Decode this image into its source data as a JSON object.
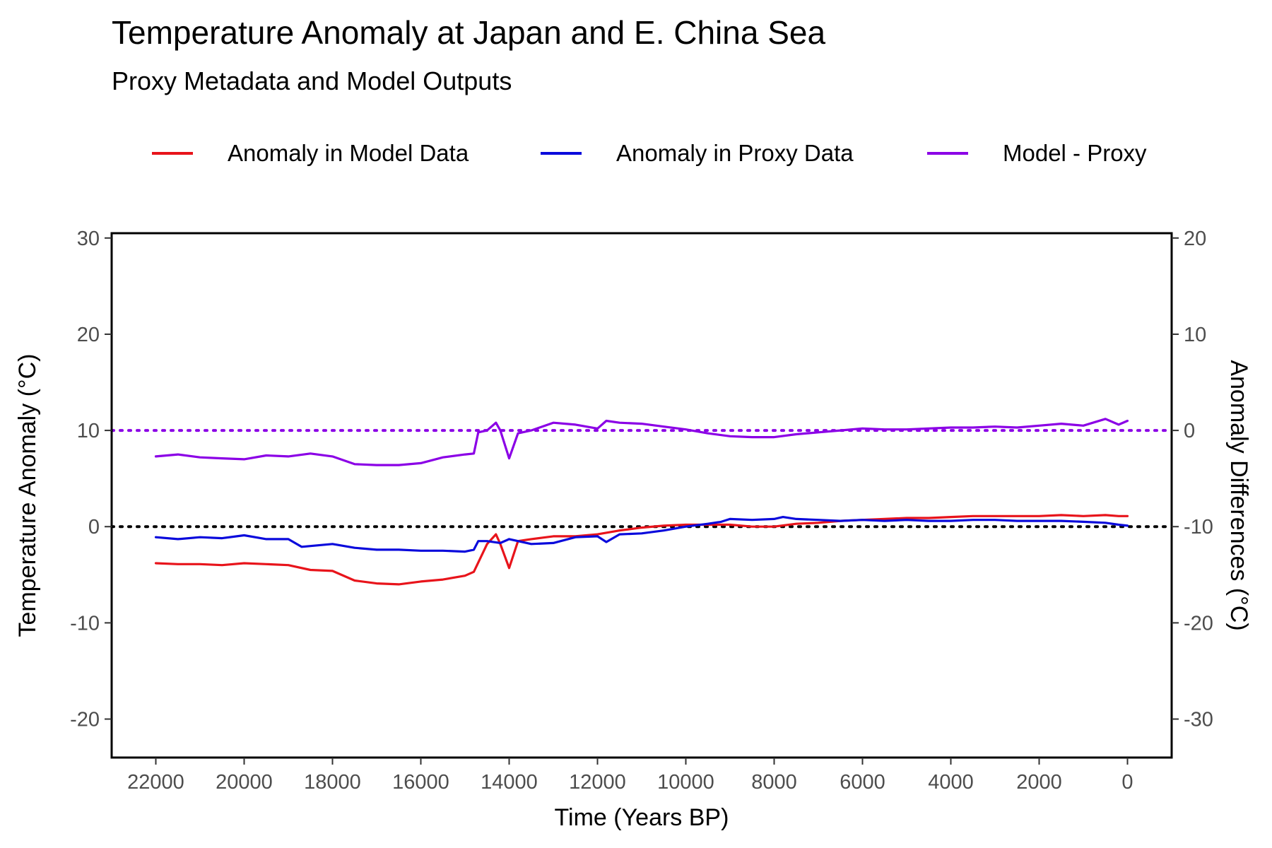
{
  "chart_data": {
    "type": "line",
    "title": "Temperature Anomaly at Japan and E. China Sea",
    "subtitle": "Proxy Metadata and Model Outputs",
    "xlabel": "Time (Years BP)",
    "ylabel": "Temperature Anomaly (°C)",
    "y2label": "Anomaly Differences (°C)",
    "xlim": [
      23000,
      -1000
    ],
    "x_reversed": true,
    "ylim": [
      -24,
      30.5
    ],
    "y2_offset": -10,
    "x_ticks": [
      22000,
      20000,
      18000,
      16000,
      14000,
      12000,
      10000,
      8000,
      6000,
      4000,
      2000,
      0
    ],
    "x_tick_labels": [
      "22000",
      "20000",
      "18000",
      "16000",
      "14000",
      "12000",
      "10000",
      "8000",
      "6000",
      "4000",
      "2000",
      "0"
    ],
    "y_ticks": [
      -20,
      -10,
      0,
      10,
      20,
      30
    ],
    "y_tick_labels": [
      "-20",
      "-10",
      "0",
      "10",
      "20",
      "30"
    ],
    "y2_ticks": [
      -30,
      -20,
      -10,
      0,
      10,
      20
    ],
    "y2_tick_labels": [
      "-30",
      "-20",
      "-10",
      "0",
      "10",
      "20"
    ],
    "grid": false,
    "legend_position": "top",
    "reference_lines": [
      {
        "axis": "y",
        "value": 0,
        "color": "#000000",
        "style": "dotted"
      },
      {
        "axis": "y2",
        "value": 0,
        "color": "#8B00E6",
        "style": "dotted"
      }
    ],
    "series": [
      {
        "name": "Anomaly in Model Data",
        "color": "#E8141B",
        "axis": "y",
        "x": [
          22000,
          21500,
          21000,
          20500,
          20000,
          19500,
          19000,
          18500,
          18000,
          17500,
          17000,
          16500,
          16000,
          15500,
          15000,
          14800,
          14500,
          14300,
          14200,
          14000,
          13800,
          13500,
          13000,
          12500,
          12000,
          11500,
          11000,
          10500,
          10000,
          9500,
          9000,
          8500,
          8000,
          7500,
          7000,
          6500,
          6000,
          5500,
          5000,
          4500,
          4000,
          3500,
          3000,
          2500,
          2000,
          1500,
          1000,
          500,
          200,
          0
        ],
        "y": [
          -3.8,
          -3.9,
          -3.9,
          -4.0,
          -3.8,
          -3.9,
          -4.0,
          -4.5,
          -4.6,
          -5.6,
          -5.9,
          -6.0,
          -5.7,
          -5.5,
          -5.1,
          -4.7,
          -1.8,
          -0.8,
          -1.8,
          -4.3,
          -1.5,
          -1.3,
          -1.0,
          -1.0,
          -0.8,
          -0.4,
          -0.1,
          0.1,
          0.2,
          0.2,
          0.2,
          0.0,
          0.0,
          0.3,
          0.4,
          0.6,
          0.7,
          0.8,
          0.9,
          0.9,
          1.0,
          1.1,
          1.1,
          1.1,
          1.1,
          1.2,
          1.1,
          1.2,
          1.1,
          1.1
        ]
      },
      {
        "name": "Anomaly in Proxy Data",
        "color": "#0A0ADC",
        "axis": "y",
        "x": [
          22000,
          21500,
          21000,
          20500,
          20000,
          19500,
          19000,
          18700,
          18000,
          17500,
          17000,
          16500,
          16000,
          15500,
          15000,
          14800,
          14700,
          14500,
          14200,
          14000,
          13800,
          13500,
          13000,
          12500,
          12000,
          11800,
          11500,
          11000,
          10500,
          10000,
          9500,
          9200,
          9000,
          8500,
          8000,
          7800,
          7500,
          7000,
          6500,
          6000,
          5500,
          5000,
          4500,
          4000,
          3500,
          3000,
          2500,
          2000,
          1500,
          1000,
          500,
          200,
          0
        ],
        "y": [
          -1.1,
          -1.3,
          -1.1,
          -1.2,
          -0.9,
          -1.3,
          -1.3,
          -2.1,
          -1.8,
          -2.2,
          -2.4,
          -2.4,
          -2.5,
          -2.5,
          -2.6,
          -2.4,
          -1.5,
          -1.5,
          -1.7,
          -1.3,
          -1.5,
          -1.8,
          -1.7,
          -1.1,
          -1.0,
          -1.6,
          -0.8,
          -0.7,
          -0.4,
          0.0,
          0.3,
          0.5,
          0.8,
          0.7,
          0.8,
          1.0,
          0.8,
          0.7,
          0.6,
          0.7,
          0.6,
          0.7,
          0.6,
          0.6,
          0.7,
          0.7,
          0.6,
          0.6,
          0.6,
          0.5,
          0.4,
          0.2,
          0.1
        ]
      },
      {
        "name": "Model - Proxy",
        "color": "#8B00E6",
        "axis": "y2",
        "x": [
          22000,
          21500,
          21000,
          20500,
          20000,
          19500,
          19000,
          18500,
          18000,
          17500,
          17000,
          16500,
          16000,
          15500,
          15000,
          14800,
          14700,
          14500,
          14300,
          14200,
          14000,
          13800,
          13500,
          13000,
          12500,
          12000,
          11800,
          11500,
          11000,
          10500,
          10000,
          9500,
          9000,
          8500,
          8000,
          7500,
          7000,
          6500,
          6000,
          5500,
          5000,
          4500,
          4000,
          3500,
          3000,
          2500,
          2000,
          1500,
          1000,
          500,
          200,
          0
        ],
        "y": [
          -2.7,
          -2.5,
          -2.8,
          -2.9,
          -3.0,
          -2.6,
          -2.7,
          -2.4,
          -2.7,
          -3.5,
          -3.6,
          -3.6,
          -3.4,
          -2.8,
          -2.5,
          -2.4,
          -0.2,
          0.0,
          0.8,
          0.0,
          -2.9,
          -0.3,
          0.0,
          0.8,
          0.6,
          0.2,
          1.0,
          0.8,
          0.7,
          0.4,
          0.1,
          -0.3,
          -0.6,
          -0.7,
          -0.7,
          -0.4,
          -0.2,
          0.0,
          0.2,
          0.1,
          0.1,
          0.2,
          0.3,
          0.3,
          0.4,
          0.3,
          0.5,
          0.7,
          0.5,
          1.2,
          0.6,
          1.0
        ]
      }
    ]
  }
}
